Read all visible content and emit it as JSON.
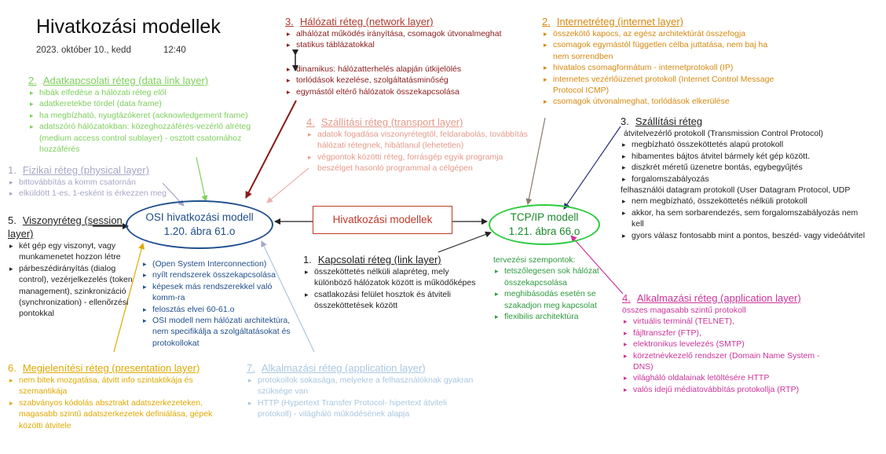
{
  "page": {
    "title": "Hivatkozási modellek",
    "date": "2023. október 10., kedd",
    "time": "12:40"
  },
  "colors": {
    "network": "#c0392b",
    "internet": "#d68910",
    "datalink": "#7dcf5c",
    "physical": "#a6a6c8",
    "session": "#222222",
    "transport_osi": "#e59a8a",
    "transport_tcp": "#333333",
    "link": "#222222",
    "design": "#2e9a3e",
    "application_tcp": "#cc3399",
    "presentation": "#e0a800",
    "application_osi": "#a9c7e0",
    "osi_box": "#1f4e8c",
    "tcp_box": "#2ecc40",
    "center_box": "#c0392b"
  },
  "osi": {
    "name": "OSI hivatkozási modell",
    "ref": "1.20. ábra 61.o",
    "items": [
      "(Open System Interconnection)",
      "nyílt rendszerek összekapcsolása",
      "képesek más rendszerekkel való komm-ra",
      "felosztás elvei 60-61.o",
      "OSI modell nem hálózati architektúra, nem specifikálja a szolgáltatásokat és protokollokat"
    ]
  },
  "center": {
    "label": "Hivatkozási modellek"
  },
  "tcpip": {
    "name": "TCP/IP modell",
    "ref": "1.21. ábra 66.o"
  },
  "network_layer": {
    "num": "3.",
    "title": "Hálózati réteg (network layer)",
    "items": [
      "alhálózat működés irányítása, csomagok útvonalmeghat",
      "statikus táblázatokkal",
      "dinamikus: hálózatterhelés alapján útkijelölés",
      "torlódások kezelése, szolgáltatásminőség",
      "egymástól eltérő hálózatok összekapcsolása"
    ]
  },
  "internet_layer": {
    "num": "2.",
    "title": "Internetréteg (internet layer)",
    "items": [
      "összekötő kapocs, az egész architektúrát összefogja",
      "csomagok egymástól független célba juttatása, nem baj ha nem sorrendben",
      "hivatalos csomagformátum - internetprotokoll (IP)",
      "internetes vezérlőüzenet protokoll (Internet Control Message Protocol ICMP)",
      "csomagok útvonalmeghat, torlódások elkerülése"
    ]
  },
  "datalink_layer": {
    "num": "2.",
    "title": "Adatkapcsolati réteg (data link layer)",
    "items": [
      "hibák elfedése a hálózati réteg elől",
      "adatkeretekbe tördel (data frame)",
      "ha megbízható, nyugtázókeret (acknowledgement frame)",
      "adatszóró hálózatokban: közeghozzáférés-vezérlő alréteg (medium access control sublayer) - osztott csatornához hozzáférés"
    ]
  },
  "transport_osi": {
    "num": "4.",
    "title": "Szállítási réteg (transport layer)",
    "items": [
      "adatok fogadása viszonyrétegtől, feldarabolás, továbbítás hálózati rétegnek, hibátlanul (lehetetlen)",
      "végpontok közötti réteg, forrásgép egyik programja beszélget hasonló programmal a célgépen"
    ]
  },
  "physical_layer": {
    "num": "1.",
    "title": "Fizikai réteg (physical layer)",
    "items": [
      "bittovábbítás a komm csatornán",
      "elküldött 1-es, 1-esként is érkezzen meg"
    ]
  },
  "session_layer": {
    "num": "5.",
    "title": "Viszonyréteg (session layer)",
    "items": [
      "két gép egy viszonyt, vagy munkamenetet hozzon létre",
      "párbeszédirányítás (dialog control), vezérjelkezelés (token management), szinkronizáció (synchronization) - ellenőrzési pontokkal"
    ]
  },
  "transport_tcp": {
    "num": "3.",
    "title": "Szállítási réteg",
    "tcp_line": "átvitelvezérlő protokoll (Transmission Control Protocol)",
    "tcp_items": [
      "megbízható összeköttetés alapú protokoll",
      "hibamentes bájtos átvitel bármely két gép között.",
      "diszkrét méretű üzenetre bontás, egybegyűjtés",
      "forgalomszabályozás"
    ],
    "udp_line": "felhasználói datagram protokoll (User Datagram Protocol, UDP",
    "udp_items": [
      "nem megbízható, összeköttetés nélküli protokoll",
      "akkor, ha sem sorbarendezés, sem forgalomszabályozás nem kell",
      "gyors válasz fontosabb mint a pontos, beszéd- vagy videóátvitel"
    ]
  },
  "link_layer": {
    "num": "1.",
    "title": "Kapcsolati réteg (link layer)",
    "items": [
      "összeköttetés nélküli alapréteg, mely különböző hálózatok között is működőképes",
      "csatlakozási felület hosztok és átviteli összeköttetések között"
    ]
  },
  "design": {
    "title": "tervezési szempontok:",
    "items": [
      "tetszőlegesen sok hálózat összekapcsolása",
      "meghibásodás esetén se szakadjon meg kapcsolat",
      "flexibilis architektúra"
    ]
  },
  "application_tcp": {
    "num": "4.",
    "title": "Alkalmazási réteg (application layer)",
    "lead": "összes magasabb szintű protokoll",
    "items": [
      "virtuális terminál (TELNET),",
      "fájltranszfer (FTP),",
      "elektronikus levelezés (SMTP)",
      "körzetnévkezelő rendszer (Domain Name System - DNS)",
      "világháló oldalainak letöltésére HTTP",
      "valós idejű médiatovábbítás protokollja (RTP)"
    ]
  },
  "presentation_layer": {
    "num": "6.",
    "title": "Megjelenítési réteg (presentation layer)",
    "items": [
      "nem bitek mozgatása, átvitt info szintaktikája és szemantikája",
      "szabványos kódolás absztrakt adatszerkezeteken, magasabb szintű adatszerkezetek definiálása, gépek közötti átvitele"
    ]
  },
  "application_osi": {
    "num": "7.",
    "title": "Alkalmazási réteg  (application layer)",
    "items": [
      "protokollok sokasága, melyekre a felhasználóknak gyakran szüksége van",
      "HTTP (Hypertext Transfer Protocol- hipertext átviteli protokoll) - világháló működésének alapja"
    ]
  }
}
